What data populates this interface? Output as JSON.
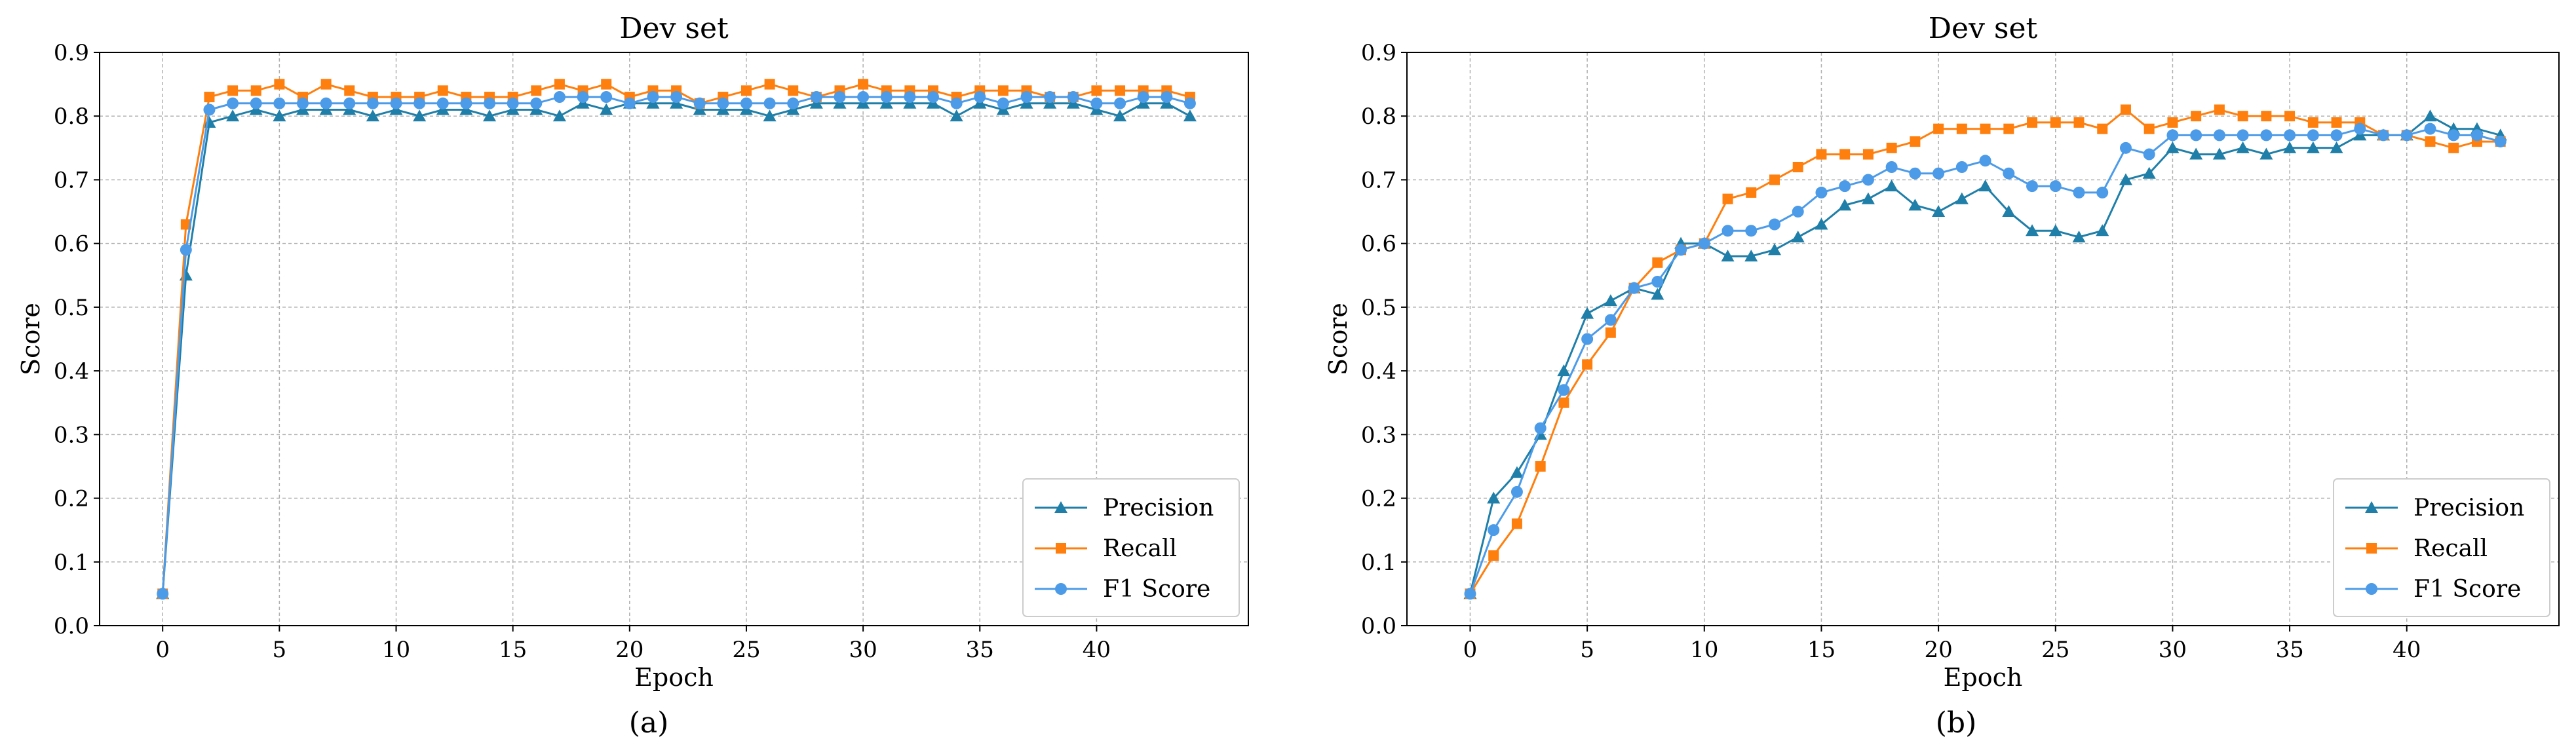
{
  "chart_data": [
    {
      "type": "line",
      "title": "Dev set",
      "caption": "(a)",
      "xlabel": "Epoch",
      "ylabel": "Score",
      "xlim": [
        -2.7,
        46.5
      ],
      "ylim": [
        0,
        0.9
      ],
      "xticks": [
        0,
        5,
        10,
        15,
        20,
        25,
        30,
        35,
        40
      ],
      "yticks": [
        0.0,
        0.1,
        0.2,
        0.3,
        0.4,
        0.5,
        0.6,
        0.7,
        0.8,
        0.9
      ],
      "grid": true,
      "legend_position": "bottom-right",
      "x": [
        0,
        1,
        2,
        3,
        4,
        5,
        6,
        7,
        8,
        9,
        10,
        11,
        12,
        13,
        14,
        15,
        16,
        17,
        18,
        19,
        20,
        21,
        22,
        23,
        24,
        25,
        26,
        27,
        28,
        29,
        30,
        31,
        32,
        33,
        34,
        35,
        36,
        37,
        38,
        39,
        40,
        41,
        42,
        43,
        44
      ],
      "series": [
        {
          "name": "Precision",
          "color": "#1f7fa8",
          "marker": "triangle",
          "values": [
            0.05,
            0.55,
            0.79,
            0.8,
            0.81,
            0.8,
            0.81,
            0.81,
            0.81,
            0.8,
            0.81,
            0.8,
            0.81,
            0.81,
            0.8,
            0.81,
            0.81,
            0.8,
            0.82,
            0.81,
            0.82,
            0.82,
            0.82,
            0.81,
            0.81,
            0.81,
            0.8,
            0.81,
            0.82,
            0.82,
            0.82,
            0.82,
            0.82,
            0.82,
            0.8,
            0.82,
            0.81,
            0.82,
            0.82,
            0.82,
            0.81,
            0.8,
            0.82,
            0.82,
            0.8
          ]
        },
        {
          "name": "Recall",
          "color": "#ff7f0e",
          "marker": "square",
          "values": [
            0.05,
            0.63,
            0.83,
            0.84,
            0.84,
            0.85,
            0.83,
            0.85,
            0.84,
            0.83,
            0.83,
            0.83,
            0.84,
            0.83,
            0.83,
            0.83,
            0.84,
            0.85,
            0.84,
            0.85,
            0.83,
            0.84,
            0.84,
            0.82,
            0.83,
            0.84,
            0.85,
            0.84,
            0.83,
            0.84,
            0.85,
            0.84,
            0.84,
            0.84,
            0.83,
            0.84,
            0.84,
            0.84,
            0.83,
            0.83,
            0.84,
            0.84,
            0.84,
            0.84,
            0.83
          ]
        },
        {
          "name": "F1 Score",
          "color": "#4c9be8",
          "marker": "circle",
          "values": [
            0.05,
            0.59,
            0.81,
            0.82,
            0.82,
            0.82,
            0.82,
            0.82,
            0.82,
            0.82,
            0.82,
            0.82,
            0.82,
            0.82,
            0.82,
            0.82,
            0.82,
            0.83,
            0.83,
            0.83,
            0.82,
            0.83,
            0.83,
            0.82,
            0.82,
            0.82,
            0.82,
            0.82,
            0.83,
            0.83,
            0.83,
            0.83,
            0.83,
            0.83,
            0.82,
            0.83,
            0.82,
            0.83,
            0.83,
            0.83,
            0.82,
            0.82,
            0.83,
            0.83,
            0.82
          ]
        }
      ]
    },
    {
      "type": "line",
      "title": "Dev set",
      "caption": "(b)",
      "xlabel": "Epoch",
      "ylabel": "Score",
      "xlim": [
        -2.7,
        46.5
      ],
      "ylim": [
        0,
        0.9
      ],
      "xticks": [
        0,
        5,
        10,
        15,
        20,
        25,
        30,
        35,
        40
      ],
      "yticks": [
        0.0,
        0.1,
        0.2,
        0.3,
        0.4,
        0.5,
        0.6,
        0.7,
        0.8,
        0.9
      ],
      "grid": true,
      "legend_position": "bottom-right",
      "x": [
        0,
        1,
        2,
        3,
        4,
        5,
        6,
        7,
        8,
        9,
        10,
        11,
        12,
        13,
        14,
        15,
        16,
        17,
        18,
        19,
        20,
        21,
        22,
        23,
        24,
        25,
        26,
        27,
        28,
        29,
        30,
        31,
        32,
        33,
        34,
        35,
        36,
        37,
        38,
        39,
        40,
        41,
        42,
        43,
        44
      ],
      "series": [
        {
          "name": "Precision",
          "color": "#1f7fa8",
          "marker": "triangle",
          "values": [
            0.05,
            0.2,
            0.24,
            0.3,
            0.4,
            0.49,
            0.51,
            0.53,
            0.52,
            0.6,
            0.6,
            0.58,
            0.58,
            0.59,
            0.61,
            0.63,
            0.66,
            0.67,
            0.69,
            0.66,
            0.65,
            0.67,
            0.69,
            0.65,
            0.62,
            0.62,
            0.61,
            0.62,
            0.7,
            0.71,
            0.75,
            0.74,
            0.74,
            0.75,
            0.74,
            0.75,
            0.75,
            0.75,
            0.77,
            0.77,
            0.77,
            0.8,
            0.78,
            0.78,
            0.77
          ]
        },
        {
          "name": "Recall",
          "color": "#ff7f0e",
          "marker": "square",
          "values": [
            0.05,
            0.11,
            0.16,
            0.25,
            0.35,
            0.41,
            0.46,
            0.53,
            0.57,
            0.59,
            0.6,
            0.67,
            0.68,
            0.7,
            0.72,
            0.74,
            0.74,
            0.74,
            0.75,
            0.76,
            0.78,
            0.78,
            0.78,
            0.78,
            0.79,
            0.79,
            0.79,
            0.78,
            0.81,
            0.78,
            0.79,
            0.8,
            0.81,
            0.8,
            0.8,
            0.8,
            0.79,
            0.79,
            0.79,
            0.77,
            0.77,
            0.76,
            0.75,
            0.76,
            0.76
          ]
        },
        {
          "name": "F1 Score",
          "color": "#4c9be8",
          "marker": "circle",
          "values": [
            0.05,
            0.15,
            0.21,
            0.31,
            0.37,
            0.45,
            0.48,
            0.53,
            0.54,
            0.59,
            0.6,
            0.62,
            0.62,
            0.63,
            0.65,
            0.68,
            0.69,
            0.7,
            0.72,
            0.71,
            0.71,
            0.72,
            0.73,
            0.71,
            0.69,
            0.69,
            0.68,
            0.68,
            0.75,
            0.74,
            0.77,
            0.77,
            0.77,
            0.77,
            0.77,
            0.77,
            0.77,
            0.77,
            0.78,
            0.77,
            0.77,
            0.78,
            0.77,
            0.77,
            0.76
          ]
        }
      ]
    }
  ]
}
